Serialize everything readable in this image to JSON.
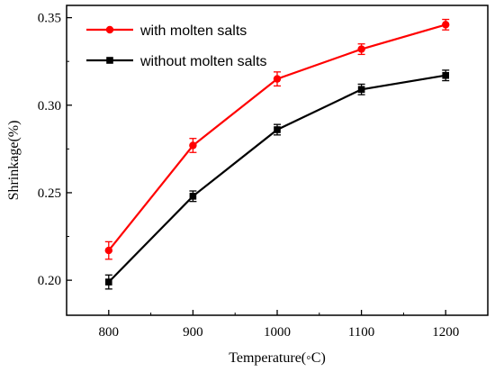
{
  "chart_data": {
    "type": "line",
    "xlabel": "Temperature(◦C)",
    "ylabel": "Shrinkage(%)",
    "xlim": [
      750,
      1250
    ],
    "ylim": [
      0.18,
      0.357
    ],
    "x_ticks": [
      800,
      900,
      1000,
      1100,
      1200
    ],
    "x_tick_labels": [
      "800",
      "900",
      "1000",
      "1100",
      "1200"
    ],
    "y_ticks": [
      0.2,
      0.25,
      0.3,
      0.35
    ],
    "y_tick_labels": [
      "0.20",
      "0.25",
      "0.30",
      "0.35"
    ],
    "grid": false,
    "legend_position": "top-left",
    "x": [
      800,
      900,
      1000,
      1100,
      1200
    ],
    "series": [
      {
        "name": "with molten salts",
        "color": "#ff0000",
        "marker": "circle",
        "values": [
          0.217,
          0.277,
          0.315,
          0.332,
          0.346
        ],
        "errors": [
          0.005,
          0.004,
          0.004,
          0.003,
          0.003
        ]
      },
      {
        "name": "without molten salts",
        "color": "#000000",
        "marker": "square",
        "values": [
          0.199,
          0.248,
          0.286,
          0.309,
          0.317
        ],
        "errors": [
          0.004,
          0.003,
          0.003,
          0.003,
          0.003
        ]
      }
    ]
  }
}
